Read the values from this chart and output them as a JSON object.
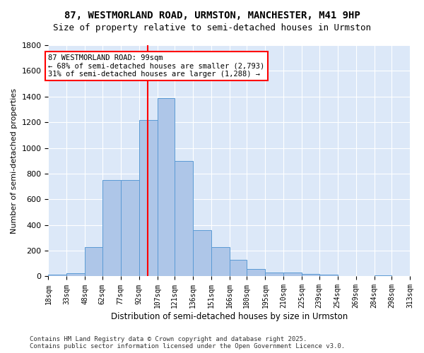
{
  "title_line1": "87, WESTMORLAND ROAD, URMSTON, MANCHESTER, M41 9HP",
  "title_line2": "Size of property relative to semi-detached houses in Urmston",
  "xlabel": "Distribution of semi-detached houses by size in Urmston",
  "ylabel": "Number of semi-detached properties",
  "footer_line1": "Contains HM Land Registry data © Crown copyright and database right 2025.",
  "footer_line2": "Contains public sector information licensed under the Open Government Licence v3.0.",
  "annotation_line1": "87 WESTMORLAND ROAD: 99sqm",
  "annotation_line2": "← 68% of semi-detached houses are smaller (2,793)",
  "annotation_line3": "31% of semi-detached houses are larger (1,288) →",
  "property_size": 99,
  "bar_color": "#aec6e8",
  "bar_edge_color": "#5b9bd5",
  "vline_color": "red",
  "background_color": "#dce8f8",
  "bin_edges": [
    18,
    33,
    48,
    62,
    77,
    92,
    107,
    121,
    136,
    151,
    166,
    180,
    195,
    210,
    225,
    239,
    254,
    269,
    284,
    298,
    313
  ],
  "bin_labels": [
    "18sqm",
    "33sqm",
    "48sqm",
    "62sqm",
    "77sqm",
    "92sqm",
    "107sqm",
    "121sqm",
    "136sqm",
    "151sqm",
    "166sqm",
    "180sqm",
    "195sqm",
    "210sqm",
    "225sqm",
    "239sqm",
    "254sqm",
    "269sqm",
    "284sqm",
    "298sqm",
    "313sqm"
  ],
  "counts": [
    15,
    25,
    230,
    750,
    750,
    1220,
    1390,
    900,
    360,
    230,
    130,
    60,
    30,
    30,
    20,
    15,
    5,
    5,
    10,
    5
  ],
  "ylim": [
    0,
    1800
  ],
  "yticks": [
    0,
    200,
    400,
    600,
    800,
    1000,
    1200,
    1400,
    1600,
    1800
  ]
}
